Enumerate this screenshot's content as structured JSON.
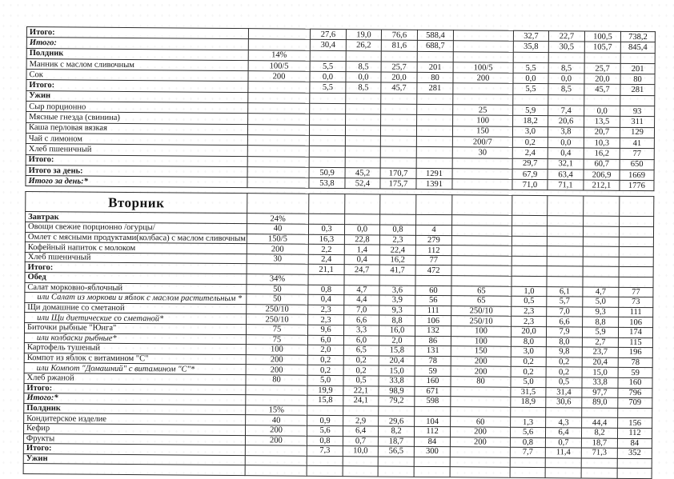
{
  "page": {
    "background": "#ffffff",
    "ink": "#151515",
    "grid_line": "#2e2e2e"
  },
  "table_monday_end": {
    "rows": [
      {
        "label": "Итого:",
        "style": "bold",
        "p1": "",
        "v1": [
          "27,6",
          "19,0",
          "76,6",
          "588,4"
        ],
        "p2": "",
        "v2": [
          "32,7",
          "22,7",
          "100,5",
          "738,2"
        ]
      },
      {
        "label": "Итого:",
        "style": "bolditalic",
        "p1": "",
        "v1": [
          "30,4",
          "26,2",
          "81,6",
          "688,7"
        ],
        "p2": "",
        "v2": [
          "35,8",
          "30,5",
          "105,7",
          "845,4"
        ]
      },
      {
        "label": "Полдник",
        "style": "bold",
        "p1": "14%",
        "v1": [
          "",
          "",
          "",
          ""
        ],
        "p2": "",
        "v2": [
          "",
          "",
          "",
          ""
        ]
      },
      {
        "label": "Манник с маслом сливочным",
        "style": "normal",
        "p1": "100/5",
        "v1": [
          "5,5",
          "8,5",
          "25,7",
          "201"
        ],
        "p2": "100/5",
        "v2": [
          "5,5",
          "8,5",
          "25,7",
          "201"
        ]
      },
      {
        "label": "Сок",
        "style": "normal",
        "p1": "200",
        "v1": [
          "0,0",
          "0,0",
          "20,0",
          "80"
        ],
        "p2": "200",
        "v2": [
          "0,0",
          "0,0",
          "20,0",
          "80"
        ]
      },
      {
        "label": "Итого:",
        "style": "bold",
        "p1": "",
        "v1": [
          "5,5",
          "8,5",
          "45,7",
          "281"
        ],
        "p2": "",
        "v2": [
          "5,5",
          "8,5",
          "45,7",
          "281"
        ]
      },
      {
        "label": "Ужин",
        "style": "bold",
        "p1": "",
        "v1": [
          "",
          "",
          "",
          ""
        ],
        "p2": "",
        "v2": [
          "",
          "",
          "",
          ""
        ]
      },
      {
        "label": "Сыр порционно",
        "style": "normal",
        "p1": "",
        "v1": [
          "",
          "",
          "",
          ""
        ],
        "p2": "25",
        "v2": [
          "5,9",
          "7,4",
          "0,0",
          "93"
        ]
      },
      {
        "label": "Мясные гнезда (свинина)",
        "style": "normal",
        "p1": "",
        "v1": [
          "",
          "",
          "",
          ""
        ],
        "p2": "100",
        "v2": [
          "18,2",
          "20,6",
          "13,5",
          "311"
        ]
      },
      {
        "label": "Каша перловая вязкая",
        "style": "normal",
        "p1": "",
        "v1": [
          "",
          "",
          "",
          ""
        ],
        "p2": "150",
        "v2": [
          "3,0",
          "3,8",
          "20,7",
          "129"
        ]
      },
      {
        "label": "Чай с лимоном",
        "style": "normal",
        "p1": "",
        "v1": [
          "",
          "",
          "",
          ""
        ],
        "p2": "200/7",
        "v2": [
          "0,2",
          "0,0",
          "10,3",
          "41"
        ]
      },
      {
        "label": "Хлеб пшеничный",
        "style": "normal",
        "p1": "",
        "v1": [
          "",
          "",
          "",
          ""
        ],
        "p2": "30",
        "v2": [
          "2,4",
          "0,4",
          "16,2",
          "77"
        ]
      },
      {
        "label": "Итого:",
        "style": "bold",
        "p1": "",
        "v1": [
          "",
          "",
          "",
          ""
        ],
        "p2": "",
        "v2": [
          "29,7",
          "32,1",
          "60,7",
          "650"
        ]
      },
      {
        "label": "Итого за день:",
        "style": "bold",
        "p1": "",
        "v1": [
          "50,9",
          "45,2",
          "170,7",
          "1291"
        ],
        "p2": "",
        "v2": [
          "67,9",
          "63,4",
          "206,9",
          "1669"
        ]
      },
      {
        "label": "Итого за день:*",
        "style": "bolditalic",
        "p1": "",
        "v1": [
          "53,8",
          "52,4",
          "175,7",
          "1391"
        ],
        "p2": "",
        "v2": [
          "71,0",
          "71,1",
          "212,1",
          "1776"
        ]
      }
    ]
  },
  "table_tuesday": {
    "title": "Вторник",
    "rows": [
      {
        "label": "Завтрак",
        "style": "bold",
        "p1": "24%",
        "v1": [
          "",
          "",
          "",
          ""
        ],
        "p2": "",
        "v2": [
          "",
          "",
          "",
          ""
        ]
      },
      {
        "label": "Овощи свежие порционно /огурцы/",
        "style": "normal",
        "p1": "40",
        "v1": [
          "0,3",
          "0,0",
          "0,8",
          "4"
        ],
        "p2": "",
        "v2": [
          "",
          "",
          "",
          ""
        ]
      },
      {
        "label": "Омлет с мясными продуктами(колбаса) с маслом сливочным",
        "style": "normal",
        "p1": "150/5",
        "v1": [
          "16,3",
          "22,8",
          "2,3",
          "279"
        ],
        "p2": "",
        "v2": [
          "",
          "",
          "",
          ""
        ]
      },
      {
        "label": "Кофейный напиток с молоком",
        "style": "normal",
        "p1": "200",
        "v1": [
          "2,2",
          "1,4",
          "22,4",
          "112"
        ],
        "p2": "",
        "v2": [
          "",
          "",
          "",
          ""
        ]
      },
      {
        "label": "Хлеб пшеничный",
        "style": "normal",
        "p1": "30",
        "v1": [
          "2,4",
          "0,4",
          "16,2",
          "77"
        ],
        "p2": "",
        "v2": [
          "",
          "",
          "",
          ""
        ]
      },
      {
        "label": "Итого:",
        "style": "bold",
        "p1": "",
        "v1": [
          "21,1",
          "24,7",
          "41,7",
          "472"
        ],
        "p2": "",
        "v2": [
          "",
          "",
          "",
          ""
        ]
      },
      {
        "label": "Обед",
        "style": "bold",
        "p1": "34%",
        "v1": [
          "",
          "",
          "",
          ""
        ],
        "p2": "",
        "v2": [
          "",
          "",
          "",
          ""
        ]
      },
      {
        "label": "Салат морковно-яблочный",
        "style": "normal",
        "p1": "50",
        "v1": [
          "0,8",
          "4,7",
          "3,6",
          "60"
        ],
        "p2": "65",
        "v2": [
          "1,0",
          "6,1",
          "4,7",
          "77"
        ]
      },
      {
        "label": "или Салат из моркови и яблок с маслом растительным *",
        "style": "italic",
        "p1": "50",
        "v1": [
          "0,4",
          "4,4",
          "3,9",
          "56"
        ],
        "p2": "65",
        "v2": [
          "0,5",
          "5,7",
          "5,0",
          "73"
        ]
      },
      {
        "label": "Щи домашние со сметаной",
        "style": "normal",
        "p1": "250/10",
        "v1": [
          "2,3",
          "7,0",
          "9,3",
          "111"
        ],
        "p2": "250/10",
        "v2": [
          "2,3",
          "7,0",
          "9,3",
          "111"
        ]
      },
      {
        "label": "или Щи диетические со сметаной*",
        "style": "italic",
        "p1": "250/10",
        "v1": [
          "2,3",
          "6,6",
          "8,8",
          "106"
        ],
        "p2": "250/10",
        "v2": [
          "2,3",
          "6,6",
          "8,8",
          "106"
        ]
      },
      {
        "label": "Биточки рыбные \"Юнга\"",
        "style": "normal",
        "p1": "75",
        "v1": [
          "9,6",
          "3,3",
          "16,0",
          "132"
        ],
        "p2": "100",
        "v2": [
          "20,0",
          "7,9",
          "5,9",
          "174"
        ]
      },
      {
        "label": "или колбаски рыбные*",
        "style": "italic",
        "p1": "75",
        "v1": [
          "6,0",
          "6,0",
          "2,0",
          "86"
        ],
        "p2": "100",
        "v2": [
          "8,0",
          "8,0",
          "2,7",
          "115"
        ]
      },
      {
        "label": "Картофель тушеный",
        "style": "normal",
        "p1": "100",
        "v1": [
          "2,0",
          "6,5",
          "15,8",
          "131"
        ],
        "p2": "150",
        "v2": [
          "3,0",
          "9,8",
          "23,7",
          "196"
        ]
      },
      {
        "label": "Компот из яблок с витамином \"С\"",
        "style": "normal",
        "p1": "200",
        "v1": [
          "0,2",
          "0,2",
          "20,4",
          "78"
        ],
        "p2": "200",
        "v2": [
          "0,2",
          "0,2",
          "20,4",
          "78"
        ]
      },
      {
        "label": "или Компот \"Домашний\" с витамином \"С\"*",
        "style": "italic",
        "p1": "200",
        "v1": [
          "0,2",
          "0,2",
          "15,0",
          "59"
        ],
        "p2": "200",
        "v2": [
          "0,2",
          "0,2",
          "15,0",
          "59"
        ]
      },
      {
        "label": "Хлеб ржаной",
        "style": "normal",
        "p1": "80",
        "v1": [
          "5,0",
          "0,5",
          "33,8",
          "160"
        ],
        "p2": "80",
        "v2": [
          "5,0",
          "0,5",
          "33,8",
          "160"
        ]
      },
      {
        "label": "Итого:",
        "style": "bold",
        "p1": "",
        "v1": [
          "19,9",
          "22,1",
          "98,9",
          "671"
        ],
        "p2": "",
        "v2": [
          "31,5",
          "31,4",
          "97,7",
          "796"
        ]
      },
      {
        "label": "Итого:*",
        "style": "bolditalic",
        "p1": "",
        "v1": [
          "15,8",
          "24,1",
          "79,2",
          "598"
        ],
        "p2": "",
        "v2": [
          "18,9",
          "30,6",
          "89,0",
          "709"
        ]
      },
      {
        "label": "Полдник",
        "style": "bold",
        "p1": "15%",
        "v1": [
          "",
          "",
          "",
          ""
        ],
        "p2": "",
        "v2": [
          "",
          "",
          "",
          ""
        ]
      },
      {
        "label": "Кондитерское изделие",
        "style": "normal",
        "p1": "40",
        "v1": [
          "0,9",
          "2,9",
          "29,6",
          "104"
        ],
        "p2": "60",
        "v2": [
          "1,3",
          "4,3",
          "44,4",
          "156"
        ]
      },
      {
        "label": "Кефир",
        "style": "normal",
        "p1": "200",
        "v1": [
          "5,6",
          "6,4",
          "8,2",
          "112"
        ],
        "p2": "200",
        "v2": [
          "5,6",
          "6,4",
          "8,2",
          "112"
        ]
      },
      {
        "label": "Фрукты",
        "style": "normal",
        "p1": "200",
        "v1": [
          "0,8",
          "0,7",
          "18,7",
          "84"
        ],
        "p2": "200",
        "v2": [
          "0,8",
          "0,7",
          "18,7",
          "84"
        ]
      },
      {
        "label": "Итого:",
        "style": "bold",
        "p1": "",
        "v1": [
          "7,3",
          "10,0",
          "56,5",
          "300"
        ],
        "p2": "",
        "v2": [
          "7,7",
          "11,4",
          "71,3",
          "352"
        ]
      },
      {
        "label": "Ужин",
        "style": "bold",
        "p1": "",
        "v1": [
          "",
          "",
          "",
          ""
        ],
        "p2": "",
        "v2": [
          "",
          "",
          "",
          ""
        ]
      },
      {
        "label": "",
        "style": "normal",
        "p1": "",
        "v1": [
          "",
          "",
          "",
          ""
        ],
        "p2": "",
        "v2": [
          "",
          "",
          "",
          ""
        ]
      }
    ]
  }
}
